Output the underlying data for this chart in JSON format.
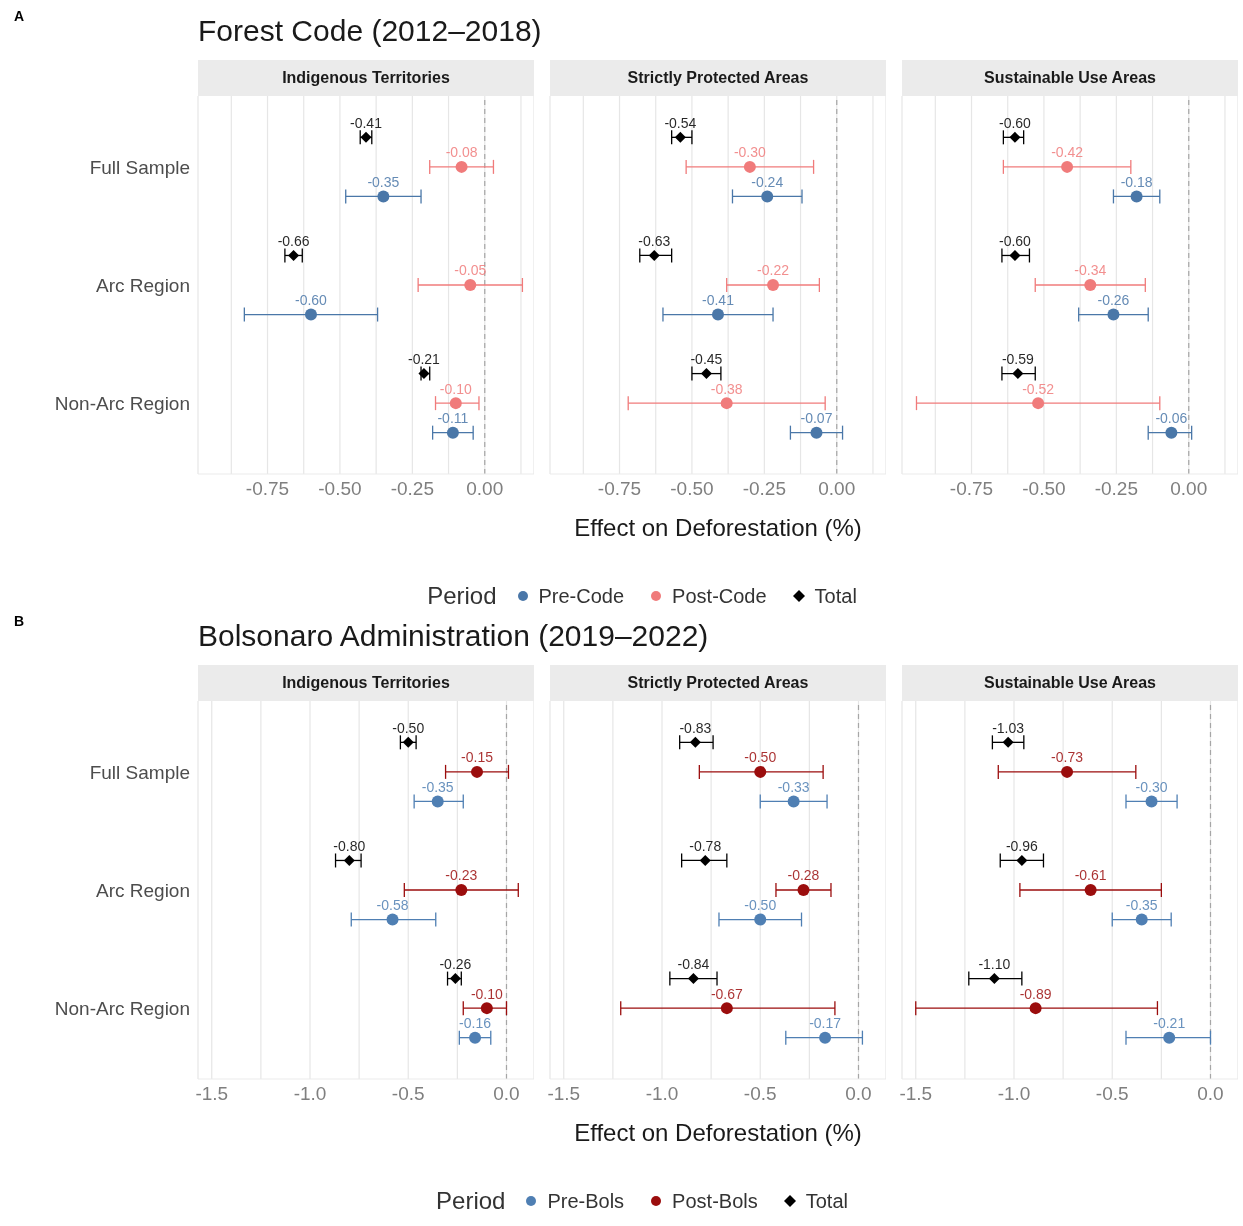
{
  "chart_data": [
    {
      "type": "scatter",
      "orientation": "horizontal",
      "title": "Forest Code (2012–2018)",
      "subtitle": "Indigenous Territories",
      "annotations": [
        "A"
      ],
      "categories": [
        "Full Sample",
        "Arc Region",
        "Non-Arc Region"
      ],
      "xlim": [
        -0.99,
        0.17
      ],
      "xticks": [
        {
          "value": -0.875,
          "label": null
        },
        {
          "value": -0.75,
          "label": "-0.75"
        },
        {
          "value": -0.625,
          "label": null
        },
        {
          "value": -0.5,
          "label": "-0.50"
        },
        {
          "value": -0.375,
          "label": null
        },
        {
          "value": -0.25,
          "label": "-0.25"
        },
        {
          "value": -0.125,
          "label": null
        },
        {
          "value": 0,
          "label": "0.00"
        },
        {
          "value": 0.125,
          "label": null
        }
      ],
      "grid": "x",
      "ref_lines": [
        {
          "axis": "x",
          "value": 0,
          "color": "#a6a6a6",
          "line_style": "dashed"
        }
      ],
      "series": [
        {
          "color": "#4a77a8",
          "marker": "circle",
          "values": [
            -0.35,
            -0.6,
            -0.11
          ],
          "value_labels": [
            "-0.35",
            "-0.60",
            "-0.11"
          ],
          "errors": [
            [
              -0.48,
              -0.22
            ],
            [
              -0.83,
              -0.37
            ],
            [
              -0.18,
              -0.04
            ]
          ]
        },
        {
          "color": "#f07b7b",
          "marker": "circle",
          "values": [
            -0.08,
            -0.05,
            -0.1
          ],
          "value_labels": [
            "-0.08",
            "-0.05",
            "-0.10"
          ],
          "errors": [
            [
              -0.19,
              0.03
            ],
            [
              -0.23,
              0.13
            ],
            [
              -0.17,
              -0.02
            ]
          ]
        },
        {
          "color": "#000000",
          "marker": "diamond",
          "values": [
            -0.41,
            -0.66,
            -0.21
          ],
          "value_labels": [
            "-0.41",
            "-0.66",
            "-0.21"
          ],
          "errors": [
            [
              -0.43,
              -0.39
            ],
            [
              -0.69,
              -0.63
            ],
            [
              -0.22,
              -0.19
            ]
          ]
        }
      ]
    },
    {
      "type": "scatter",
      "orientation": "horizontal",
      "subtitle": "Strictly Protected Areas",
      "xlabel": "Effect on Deforestation (%)",
      "legend": "bottom",
      "legend_title": "Period",
      "tick_labels": "x",
      "categories": [
        null,
        null,
        null
      ],
      "xlim": [
        -0.99,
        0.17
      ],
      "xticks": [
        {
          "value": -0.875,
          "label": null
        },
        {
          "value": -0.75,
          "label": "-0.75"
        },
        {
          "value": -0.625,
          "label": null
        },
        {
          "value": -0.5,
          "label": "-0.50"
        },
        {
          "value": -0.375,
          "label": null
        },
        {
          "value": -0.25,
          "label": "-0.25"
        },
        {
          "value": -0.125,
          "label": null
        },
        {
          "value": 0,
          "label": "0.00"
        },
        {
          "value": 0.125,
          "label": null
        }
      ],
      "grid": "x",
      "ref_lines": [
        {
          "axis": "x",
          "value": 0,
          "color": "#a6a6a6",
          "line_style": "dashed"
        }
      ],
      "series": [
        {
          "name": "Pre-Code",
          "color": "#4a77a8",
          "marker": "circle",
          "values": [
            -0.24,
            -0.41,
            -0.07
          ],
          "value_labels": [
            "-0.24",
            "-0.41",
            "-0.07"
          ],
          "errors": [
            [
              -0.36,
              -0.12
            ],
            [
              -0.6,
              -0.22
            ],
            [
              -0.16,
              0.02
            ]
          ]
        },
        {
          "name": "Post-Code",
          "color": "#f07b7b",
          "marker": "circle",
          "values": [
            -0.3,
            -0.22,
            -0.38
          ],
          "value_labels": [
            "-0.30",
            "-0.22",
            "-0.38"
          ],
          "errors": [
            [
              -0.52,
              -0.08
            ],
            [
              -0.38,
              -0.06
            ],
            [
              -0.72,
              -0.04
            ]
          ]
        },
        {
          "name": "Total",
          "color": "#000000",
          "marker": "diamond",
          "values": [
            -0.54,
            -0.63,
            -0.45
          ],
          "value_labels": [
            "-0.54",
            "-0.63",
            "-0.45"
          ],
          "errors": [
            [
              -0.57,
              -0.5
            ],
            [
              -0.68,
              -0.57
            ],
            [
              -0.5,
              -0.4
            ]
          ]
        }
      ]
    },
    {
      "type": "scatter",
      "orientation": "horizontal",
      "subtitle": "Sustainable Use Areas",
      "tick_labels": "x",
      "categories": [
        null,
        null,
        null
      ],
      "xlim": [
        -0.99,
        0.17
      ],
      "xticks": [
        {
          "value": -0.875,
          "label": null
        },
        {
          "value": -0.75,
          "label": "-0.75"
        },
        {
          "value": -0.625,
          "label": null
        },
        {
          "value": -0.5,
          "label": "-0.50"
        },
        {
          "value": -0.375,
          "label": null
        },
        {
          "value": -0.25,
          "label": "-0.25"
        },
        {
          "value": -0.125,
          "label": null
        },
        {
          "value": 0,
          "label": "0.00"
        },
        {
          "value": 0.125,
          "label": null
        }
      ],
      "grid": "x",
      "ref_lines": [
        {
          "axis": "x",
          "value": 0,
          "color": "#a6a6a6",
          "line_style": "dashed"
        }
      ],
      "series": [
        {
          "color": "#4a77a8",
          "marker": "circle",
          "values": [
            -0.18,
            -0.26,
            -0.06
          ],
          "value_labels": [
            "-0.18",
            "-0.26",
            "-0.06"
          ],
          "errors": [
            [
              -0.26,
              -0.1
            ],
            [
              -0.38,
              -0.14
            ],
            [
              -0.14,
              0.01
            ]
          ]
        },
        {
          "color": "#f07b7b",
          "marker": "circle",
          "values": [
            -0.42,
            -0.34,
            -0.52
          ],
          "value_labels": [
            "-0.42",
            "-0.34",
            "-0.52"
          ],
          "errors": [
            [
              -0.64,
              -0.2
            ],
            [
              -0.53,
              -0.15
            ],
            [
              -0.94,
              -0.1
            ]
          ]
        },
        {
          "color": "#000000",
          "marker": "diamond",
          "values": [
            -0.6,
            -0.6,
            -0.59
          ],
          "value_labels": [
            "-0.60",
            "-0.60",
            "-0.59"
          ],
          "errors": [
            [
              -0.64,
              -0.57
            ],
            [
              -0.645,
              -0.55
            ],
            [
              -0.645,
              -0.53
            ]
          ]
        }
      ]
    },
    {
      "type": "scatter",
      "orientation": "horizontal",
      "title": "Bolsonaro Administration (2019–2022)",
      "subtitle": "Indigenous Territories",
      "annotations": [
        "B"
      ],
      "categories": [
        "Full Sample",
        "Arc Region",
        "Non-Arc Region"
      ],
      "xlim": [
        -1.57,
        0.14
      ],
      "xticks": [
        {
          "value": -1.5,
          "label": "-1.5"
        },
        {
          "value": -1.25,
          "label": null
        },
        {
          "value": -1,
          "label": "-1.0"
        },
        {
          "value": -0.75,
          "label": null
        },
        {
          "value": -0.5,
          "label": "-0.5"
        },
        {
          "value": -0.25,
          "label": null
        },
        {
          "value": 0,
          "label": "0.0"
        }
      ],
      "grid": "x",
      "ref_lines": [
        {
          "axis": "x",
          "value": 0,
          "color": "#a6a6a6",
          "line_style": "dashed"
        }
      ],
      "series": [
        {
          "color": "#4f7fb3",
          "marker": "circle",
          "values": [
            -0.35,
            -0.58,
            -0.16
          ],
          "value_labels": [
            "-0.35",
            "-0.58",
            "-0.16"
          ],
          "errors": [
            [
              -0.47,
              -0.22
            ],
            [
              -0.79,
              -0.36
            ],
            [
              -0.24,
              -0.08
            ]
          ]
        },
        {
          "color": "#9b0d0d",
          "marker": "circle",
          "values": [
            -0.15,
            -0.23,
            -0.1
          ],
          "value_labels": [
            "-0.15",
            "-0.23",
            "-0.10"
          ],
          "errors": [
            [
              -0.31,
              0.01
            ],
            [
              -0.52,
              0.06
            ],
            [
              -0.22,
              0.0
            ]
          ]
        },
        {
          "color": "#000000",
          "marker": "diamond",
          "values": [
            -0.5,
            -0.8,
            -0.26
          ],
          "value_labels": [
            "-0.50",
            "-0.80",
            "-0.26"
          ],
          "errors": [
            [
              -0.54,
              -0.46
            ],
            [
              -0.87,
              -0.74
            ],
            [
              -0.3,
              -0.23
            ]
          ]
        }
      ]
    },
    {
      "type": "scatter",
      "orientation": "horizontal",
      "subtitle": "Strictly Protected Areas",
      "xlabel": "Effect on Deforestation (%)",
      "legend": "bottom",
      "legend_title": "Period",
      "tick_labels": "x",
      "categories": [
        null,
        null,
        null
      ],
      "xlim": [
        -1.57,
        0.14
      ],
      "xticks": [
        {
          "value": -1.5,
          "label": "-1.5"
        },
        {
          "value": -1.25,
          "label": null
        },
        {
          "value": -1,
          "label": "-1.0"
        },
        {
          "value": -0.75,
          "label": null
        },
        {
          "value": -0.5,
          "label": "-0.5"
        },
        {
          "value": -0.25,
          "label": null
        },
        {
          "value": 0,
          "label": "0.0"
        }
      ],
      "grid": "x",
      "ref_lines": [
        {
          "axis": "x",
          "value": 0,
          "color": "#a6a6a6",
          "line_style": "dashed"
        }
      ],
      "series": [
        {
          "name": "Pre-Bols",
          "color": "#4f7fb3",
          "marker": "circle",
          "values": [
            -0.33,
            -0.5,
            -0.17
          ],
          "value_labels": [
            "-0.33",
            "-0.50",
            "-0.17"
          ],
          "errors": [
            [
              -0.5,
              -0.16
            ],
            [
              -0.71,
              -0.29
            ],
            [
              -0.37,
              0.02
            ]
          ]
        },
        {
          "name": "Post-Bols",
          "color": "#9b0d0d",
          "marker": "circle",
          "values": [
            -0.5,
            -0.28,
            -0.67
          ],
          "value_labels": [
            "-0.50",
            "-0.28",
            "-0.67"
          ],
          "errors": [
            [
              -0.81,
              -0.18
            ],
            [
              -0.42,
              -0.14
            ],
            [
              -1.21,
              -0.12
            ]
          ]
        },
        {
          "name": "Total",
          "color": "#000000",
          "marker": "diamond",
          "values": [
            -0.83,
            -0.78,
            -0.84
          ],
          "value_labels": [
            "-0.83",
            "-0.78",
            "-0.84"
          ],
          "errors": [
            [
              -0.91,
              -0.74
            ],
            [
              -0.9,
              -0.67
            ],
            [
              -0.96,
              -0.72
            ]
          ]
        }
      ]
    },
    {
      "type": "scatter",
      "orientation": "horizontal",
      "subtitle": "Sustainable Use Areas",
      "tick_labels": "x",
      "categories": [
        null,
        null,
        null
      ],
      "xlim": [
        -1.57,
        0.14
      ],
      "xticks": [
        {
          "value": -1.5,
          "label": "-1.5"
        },
        {
          "value": -1.25,
          "label": null
        },
        {
          "value": -1,
          "label": "-1.0"
        },
        {
          "value": -0.75,
          "label": null
        },
        {
          "value": -0.5,
          "label": "-0.5"
        },
        {
          "value": -0.25,
          "label": null
        },
        {
          "value": 0,
          "label": "0.0"
        }
      ],
      "grid": "x",
      "ref_lines": [
        {
          "axis": "x",
          "value": 0,
          "color": "#a6a6a6",
          "line_style": "dashed"
        }
      ],
      "series": [
        {
          "color": "#4f7fb3",
          "marker": "circle",
          "values": [
            -0.3,
            -0.35,
            -0.21
          ],
          "value_labels": [
            "-0.30",
            "-0.35",
            "-0.21"
          ],
          "errors": [
            [
              -0.43,
              -0.17
            ],
            [
              -0.5,
              -0.2
            ],
            [
              -0.43,
              0.0
            ]
          ]
        },
        {
          "color": "#9b0d0d",
          "marker": "circle",
          "values": [
            -0.73,
            -0.61,
            -0.89
          ],
          "value_labels": [
            "-0.73",
            "-0.61",
            "-0.89"
          ],
          "errors": [
            [
              -1.08,
              -0.38
            ],
            [
              -0.97,
              -0.25
            ],
            [
              -1.5,
              -0.27
            ]
          ]
        },
        {
          "color": "#000000",
          "marker": "diamond",
          "values": [
            -1.03,
            -0.96,
            -1.1
          ],
          "value_labels": [
            "-1.03",
            "-0.96",
            "-1.10"
          ],
          "errors": [
            [
              -1.11,
              -0.95
            ],
            [
              -1.07,
              -0.85
            ],
            [
              -1.23,
              -0.96
            ]
          ]
        }
      ]
    }
  ]
}
